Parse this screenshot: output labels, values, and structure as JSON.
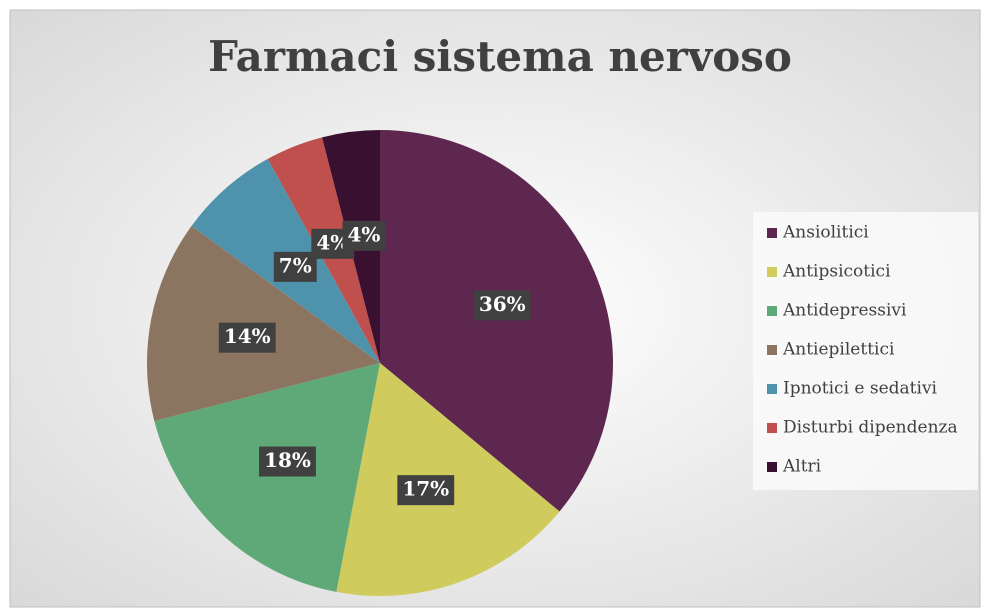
{
  "chart_data": {
    "type": "pie",
    "title": "Farmaci sistema nervoso",
    "categories": [
      "Ansiolitici",
      "Antipsicotici",
      "Antidepressivi",
      "Antiepilettici",
      "Ipnotici e sedativi",
      "Disturbi dipendenza",
      "Altri"
    ],
    "values": [
      36,
      17,
      18,
      14,
      7,
      4,
      4
    ],
    "value_labels": [
      "36%",
      "17%",
      "18%",
      "14%",
      "7%",
      "4%",
      "4%"
    ],
    "colors": [
      "#5e2750",
      "#cfcb5c",
      "#5fa878",
      "#8b7560",
      "#4e93ab",
      "#c0504d",
      "#3a1030"
    ],
    "legend": "right"
  }
}
